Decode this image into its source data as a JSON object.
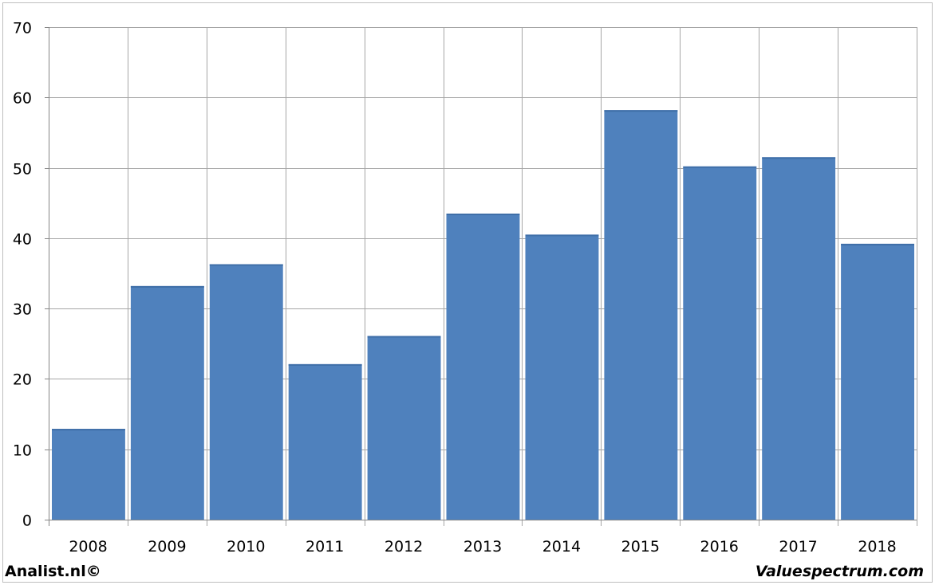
{
  "chart_data": {
    "type": "bar",
    "categories": [
      "2008",
      "2009",
      "2010",
      "2011",
      "2012",
      "2013",
      "2014",
      "2015",
      "2016",
      "2017",
      "2018"
    ],
    "values": [
      12.9,
      33.2,
      36.3,
      22.1,
      26.1,
      43.5,
      40.5,
      58.2,
      50.2,
      51.5,
      39.2
    ],
    "ylim": [
      0,
      70
    ],
    "yticks": [
      0,
      10,
      20,
      30,
      40,
      50,
      60,
      70
    ],
    "grid": true,
    "bar_color": "#4f81bd",
    "grid_color": "#a6a6a6"
  },
  "footer": {
    "left_text": "Analist.nl©",
    "right_text": "Valuespectrum.com"
  }
}
